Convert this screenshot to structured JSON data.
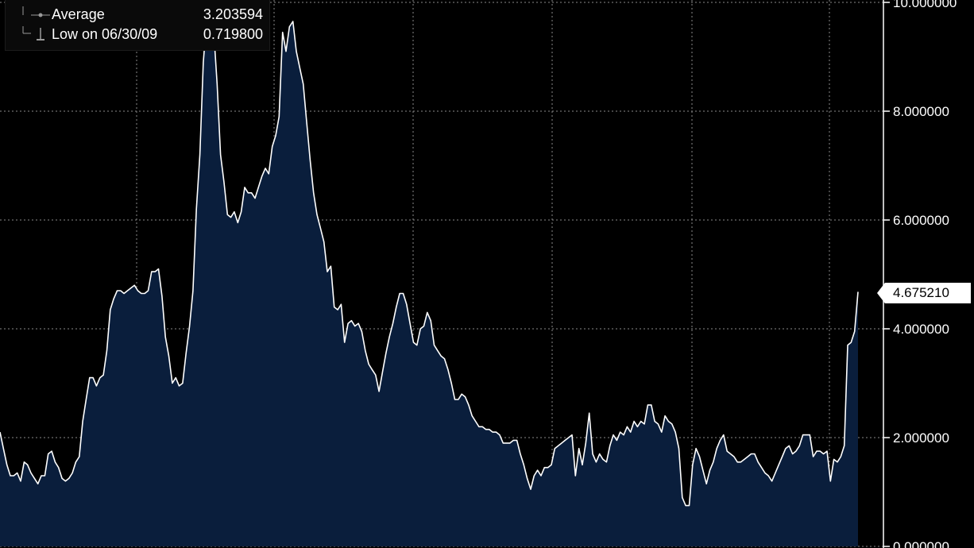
{
  "legend": {
    "rows": [
      {
        "label": "Average",
        "value": "3.203594",
        "icon": "dot-line-icon"
      },
      {
        "label": "Low on 06/30/09",
        "value": "0.719800",
        "icon": "low-marker-icon"
      }
    ]
  },
  "last_value": "4.675210",
  "colors": {
    "background": "#000000",
    "fill": "#0a1e3c",
    "line": "#ffffff",
    "grid": "#8a8a8a"
  },
  "chart_data": {
    "type": "area",
    "ylim": [
      0,
      10
    ],
    "yticks": [
      {
        "value": 0,
        "label": "0.000000"
      },
      {
        "value": 2,
        "label": "2.000000"
      },
      {
        "value": 4,
        "label": "4.000000"
      },
      {
        "value": 6,
        "label": "6.000000"
      },
      {
        "value": 8,
        "label": "8.000000"
      },
      {
        "value": 10,
        "label": "10.000000"
      }
    ],
    "grid": true,
    "values": [
      2.1,
      1.8,
      1.5,
      1.3,
      1.3,
      1.35,
      1.2,
      1.55,
      1.5,
      1.35,
      1.25,
      1.15,
      1.3,
      1.3,
      1.7,
      1.75,
      1.55,
      1.45,
      1.25,
      1.2,
      1.25,
      1.35,
      1.55,
      1.65,
      2.3,
      2.7,
      3.1,
      3.1,
      2.95,
      3.1,
      3.15,
      3.6,
      4.35,
      4.55,
      4.7,
      4.7,
      4.65,
      4.7,
      4.75,
      4.8,
      4.7,
      4.65,
      4.65,
      4.7,
      5.05,
      5.05,
      5.1,
      4.6,
      3.85,
      3.5,
      3.0,
      3.1,
      2.95,
      3.0,
      3.55,
      4.05,
      4.7,
      6.2,
      7.2,
      8.9,
      9.7,
      10.3,
      9.5,
      8.5,
      7.2,
      6.7,
      6.1,
      6.05,
      6.15,
      5.95,
      6.15,
      6.6,
      6.5,
      6.5,
      6.4,
      6.6,
      6.8,
      6.95,
      6.85,
      7.35,
      7.55,
      7.9,
      9.45,
      9.1,
      9.55,
      9.65,
      9.1,
      8.8,
      8.5,
      7.8,
      7.1,
      6.5,
      6.1,
      5.85,
      5.6,
      5.05,
      5.15,
      4.4,
      4.35,
      4.45,
      3.75,
      4.1,
      4.15,
      4.05,
      4.1,
      3.95,
      3.6,
      3.35,
      3.25,
      3.15,
      2.85,
      3.2,
      3.55,
      3.85,
      4.1,
      4.4,
      4.65,
      4.65,
      4.45,
      4.1,
      3.75,
      3.7,
      4.0,
      4.05,
      4.3,
      4.15,
      3.7,
      3.6,
      3.5,
      3.45,
      3.25,
      3.0,
      2.7,
      2.7,
      2.8,
      2.75,
      2.6,
      2.4,
      2.3,
      2.2,
      2.2,
      2.15,
      2.15,
      2.1,
      2.1,
      2.05,
      1.9,
      1.9,
      1.9,
      1.95,
      1.95,
      1.7,
      1.5,
      1.25,
      1.05,
      1.3,
      1.4,
      1.3,
      1.45,
      1.45,
      1.5,
      1.8,
      1.85,
      1.9,
      1.95,
      2.0,
      2.05,
      1.3,
      1.8,
      1.5,
      1.9,
      2.45,
      1.7,
      1.55,
      1.7,
      1.6,
      1.55,
      1.85,
      2.05,
      1.95,
      2.1,
      2.05,
      2.2,
      2.1,
      2.3,
      2.2,
      2.3,
      2.25,
      2.6,
      2.6,
      2.3,
      2.25,
      2.1,
      2.4,
      2.3,
      2.25,
      2.1,
      1.8,
      0.9,
      0.75,
      0.75,
      1.5,
      1.8,
      1.65,
      1.4,
      1.15,
      1.4,
      1.55,
      1.8,
      1.95,
      2.05,
      1.75,
      1.7,
      1.65,
      1.55,
      1.55,
      1.6,
      1.65,
      1.7,
      1.7,
      1.55,
      1.45,
      1.35,
      1.3,
      1.2,
      1.35,
      1.5,
      1.65,
      1.8,
      1.85,
      1.7,
      1.75,
      1.85,
      2.05,
      2.05,
      2.05,
      1.65,
      1.75,
      1.75,
      1.7,
      1.75,
      1.2,
      1.6,
      1.55,
      1.65,
      1.85,
      3.7,
      3.75,
      3.95,
      4.68
    ]
  }
}
